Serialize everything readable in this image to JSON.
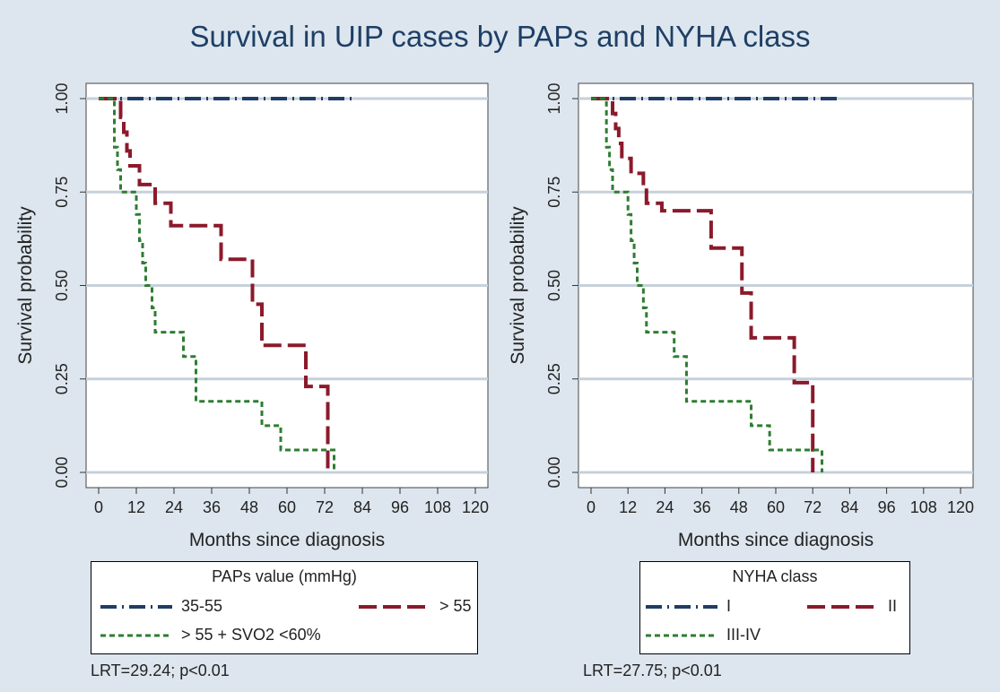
{
  "title": "Survival in UIP cases by PAPs and NYHA class",
  "colors": {
    "background": "#dde6ee",
    "plot_bg": "#ffffff",
    "grid": "#c5d1dc",
    "blue": "#1f3d66",
    "red": "#8b1a2b",
    "green": "#2e7d32"
  },
  "chart_data": [
    {
      "type": "line",
      "subtype": "kaplan-meier step",
      "xlabel": "Months since diagnosis",
      "ylabel": "Survival probability",
      "xticks": [
        0,
        12,
        24,
        36,
        48,
        60,
        72,
        84,
        96,
        108,
        120
      ],
      "yticks": [
        "0.00",
        "0.25",
        "0.50",
        "0.75",
        "1.00"
      ],
      "xlim": [
        0,
        120
      ],
      "ylim": [
        0,
        1
      ],
      "grid": "horizontal",
      "legend_title": "PAPs value (mmHg)",
      "footnote": "LRT=29.24; p<0.01",
      "series": [
        {
          "name": "35-55",
          "color": "#1f3d66",
          "style": "longdash-dot",
          "x": [
            0,
            82
          ],
          "y": [
            1.0,
            1.0
          ]
        },
        {
          "name": "> 55",
          "color": "#8b1a2b",
          "style": "longdash",
          "x": [
            0,
            7,
            8,
            9,
            10,
            13,
            18,
            23,
            39,
            49,
            52,
            66,
            73
          ],
          "y": [
            1.0,
            0.95,
            0.91,
            0.86,
            0.82,
            0.77,
            0.72,
            0.66,
            0.57,
            0.45,
            0.34,
            0.23,
            0.0
          ]
        },
        {
          "name": "> 55 + SVO2 <60%",
          "color": "#2e7d32",
          "style": "dash",
          "x": [
            0,
            5,
            6,
            7,
            12,
            13,
            14,
            15,
            17,
            18,
            27,
            31,
            52,
            58,
            75
          ],
          "y": [
            1.0,
            0.87,
            0.81,
            0.75,
            0.69,
            0.62,
            0.56,
            0.5,
            0.44,
            0.375,
            0.31,
            0.19,
            0.125,
            0.06,
            0.0
          ]
        }
      ]
    },
    {
      "type": "line",
      "subtype": "kaplan-meier step",
      "xlabel": "Months since diagnosis",
      "ylabel": "Survival probability",
      "xticks": [
        0,
        12,
        24,
        36,
        48,
        60,
        72,
        84,
        96,
        108,
        120
      ],
      "yticks": [
        "0.00",
        "0.25",
        "0.50",
        "0.75",
        "1.00"
      ],
      "xlim": [
        0,
        120
      ],
      "ylim": [
        0,
        1
      ],
      "grid": "horizontal",
      "legend_title": "NYHA class",
      "footnote": "LRT=27.75; p<0.01",
      "series": [
        {
          "name": "I",
          "color": "#1f3d66",
          "style": "longdash-dot",
          "x": [
            0,
            80
          ],
          "y": [
            1.0,
            1.0
          ]
        },
        {
          "name": "II",
          "color": "#8b1a2b",
          "style": "longdash",
          "x": [
            0,
            7,
            8,
            9,
            10,
            13,
            17,
            18,
            23,
            39,
            49,
            52,
            66,
            72
          ],
          "y": [
            1.0,
            0.96,
            0.92,
            0.88,
            0.84,
            0.8,
            0.76,
            0.72,
            0.7,
            0.6,
            0.48,
            0.36,
            0.24,
            0.0
          ]
        },
        {
          "name": "III-IV",
          "color": "#2e7d32",
          "style": "dash",
          "x": [
            0,
            5,
            6,
            7,
            12,
            13,
            14,
            15,
            17,
            18,
            27,
            31,
            52,
            58,
            75
          ],
          "y": [
            1.0,
            0.87,
            0.81,
            0.75,
            0.69,
            0.62,
            0.56,
            0.5,
            0.44,
            0.375,
            0.31,
            0.19,
            0.125,
            0.06,
            0.0
          ]
        }
      ]
    }
  ]
}
